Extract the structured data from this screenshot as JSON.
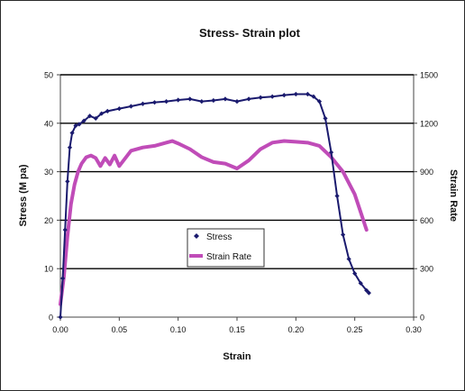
{
  "chart_data": {
    "type": "line",
    "title": "Stress- Strain plot",
    "xlabel": "Strain",
    "ylabel": "Stress (M pa)",
    "y2label": "Strain Rate",
    "xlim": [
      0,
      0.3
    ],
    "ylim": [
      0,
      50
    ],
    "y2lim": [
      0,
      1500
    ],
    "x_ticks": [
      "0.00",
      "0.05",
      "0.10",
      "0.15",
      "0.20",
      "0.25",
      "0.30"
    ],
    "y_ticks": [
      "0",
      "10",
      "20",
      "30",
      "40",
      "50"
    ],
    "y2_ticks": [
      "0",
      "300",
      "600",
      "900",
      "1200",
      "1500"
    ],
    "grid": "horizontal",
    "legend_position": "center",
    "series": [
      {
        "name": "Stress",
        "axis": "left",
        "color": "#1a1a6e",
        "marker": "diamond",
        "x": [
          0.0,
          0.002,
          0.004,
          0.006,
          0.008,
          0.01,
          0.013,
          0.016,
          0.02,
          0.025,
          0.03,
          0.035,
          0.04,
          0.05,
          0.06,
          0.07,
          0.08,
          0.09,
          0.1,
          0.11,
          0.12,
          0.13,
          0.14,
          0.15,
          0.16,
          0.17,
          0.18,
          0.19,
          0.2,
          0.21,
          0.215,
          0.22,
          0.225,
          0.23,
          0.235,
          0.24,
          0.245,
          0.25,
          0.255,
          0.26,
          0.262
        ],
        "values": [
          0,
          8,
          18,
          28,
          35,
          38,
          39.5,
          39.8,
          40.5,
          41.5,
          41.0,
          42.0,
          42.5,
          43.0,
          43.5,
          44.0,
          44.3,
          44.5,
          44.8,
          45.0,
          44.5,
          44.7,
          45.0,
          44.5,
          45.0,
          45.3,
          45.5,
          45.8,
          46.0,
          46.0,
          45.5,
          44.5,
          41.0,
          34.0,
          25.0,
          17.0,
          12.0,
          9.0,
          7.0,
          5.5,
          5.0
        ]
      },
      {
        "name": "Strain Rate",
        "axis": "right",
        "color": "#c04cb8",
        "marker": "none",
        "x": [
          0.0,
          0.003,
          0.006,
          0.009,
          0.012,
          0.015,
          0.018,
          0.022,
          0.026,
          0.03,
          0.034,
          0.038,
          0.042,
          0.046,
          0.05,
          0.06,
          0.07,
          0.08,
          0.09,
          0.095,
          0.1,
          0.11,
          0.12,
          0.13,
          0.14,
          0.15,
          0.16,
          0.17,
          0.18,
          0.19,
          0.2,
          0.21,
          0.22,
          0.23,
          0.24,
          0.25,
          0.255,
          0.26
        ],
        "values": [
          80,
          250,
          500,
          700,
          820,
          900,
          950,
          990,
          1000,
          985,
          935,
          985,
          945,
          1000,
          935,
          1030,
          1050,
          1060,
          1080,
          1090,
          1075,
          1040,
          990,
          960,
          950,
          920,
          970,
          1040,
          1080,
          1090,
          1085,
          1080,
          1060,
          990,
          900,
          760,
          650,
          540
        ]
      }
    ]
  }
}
